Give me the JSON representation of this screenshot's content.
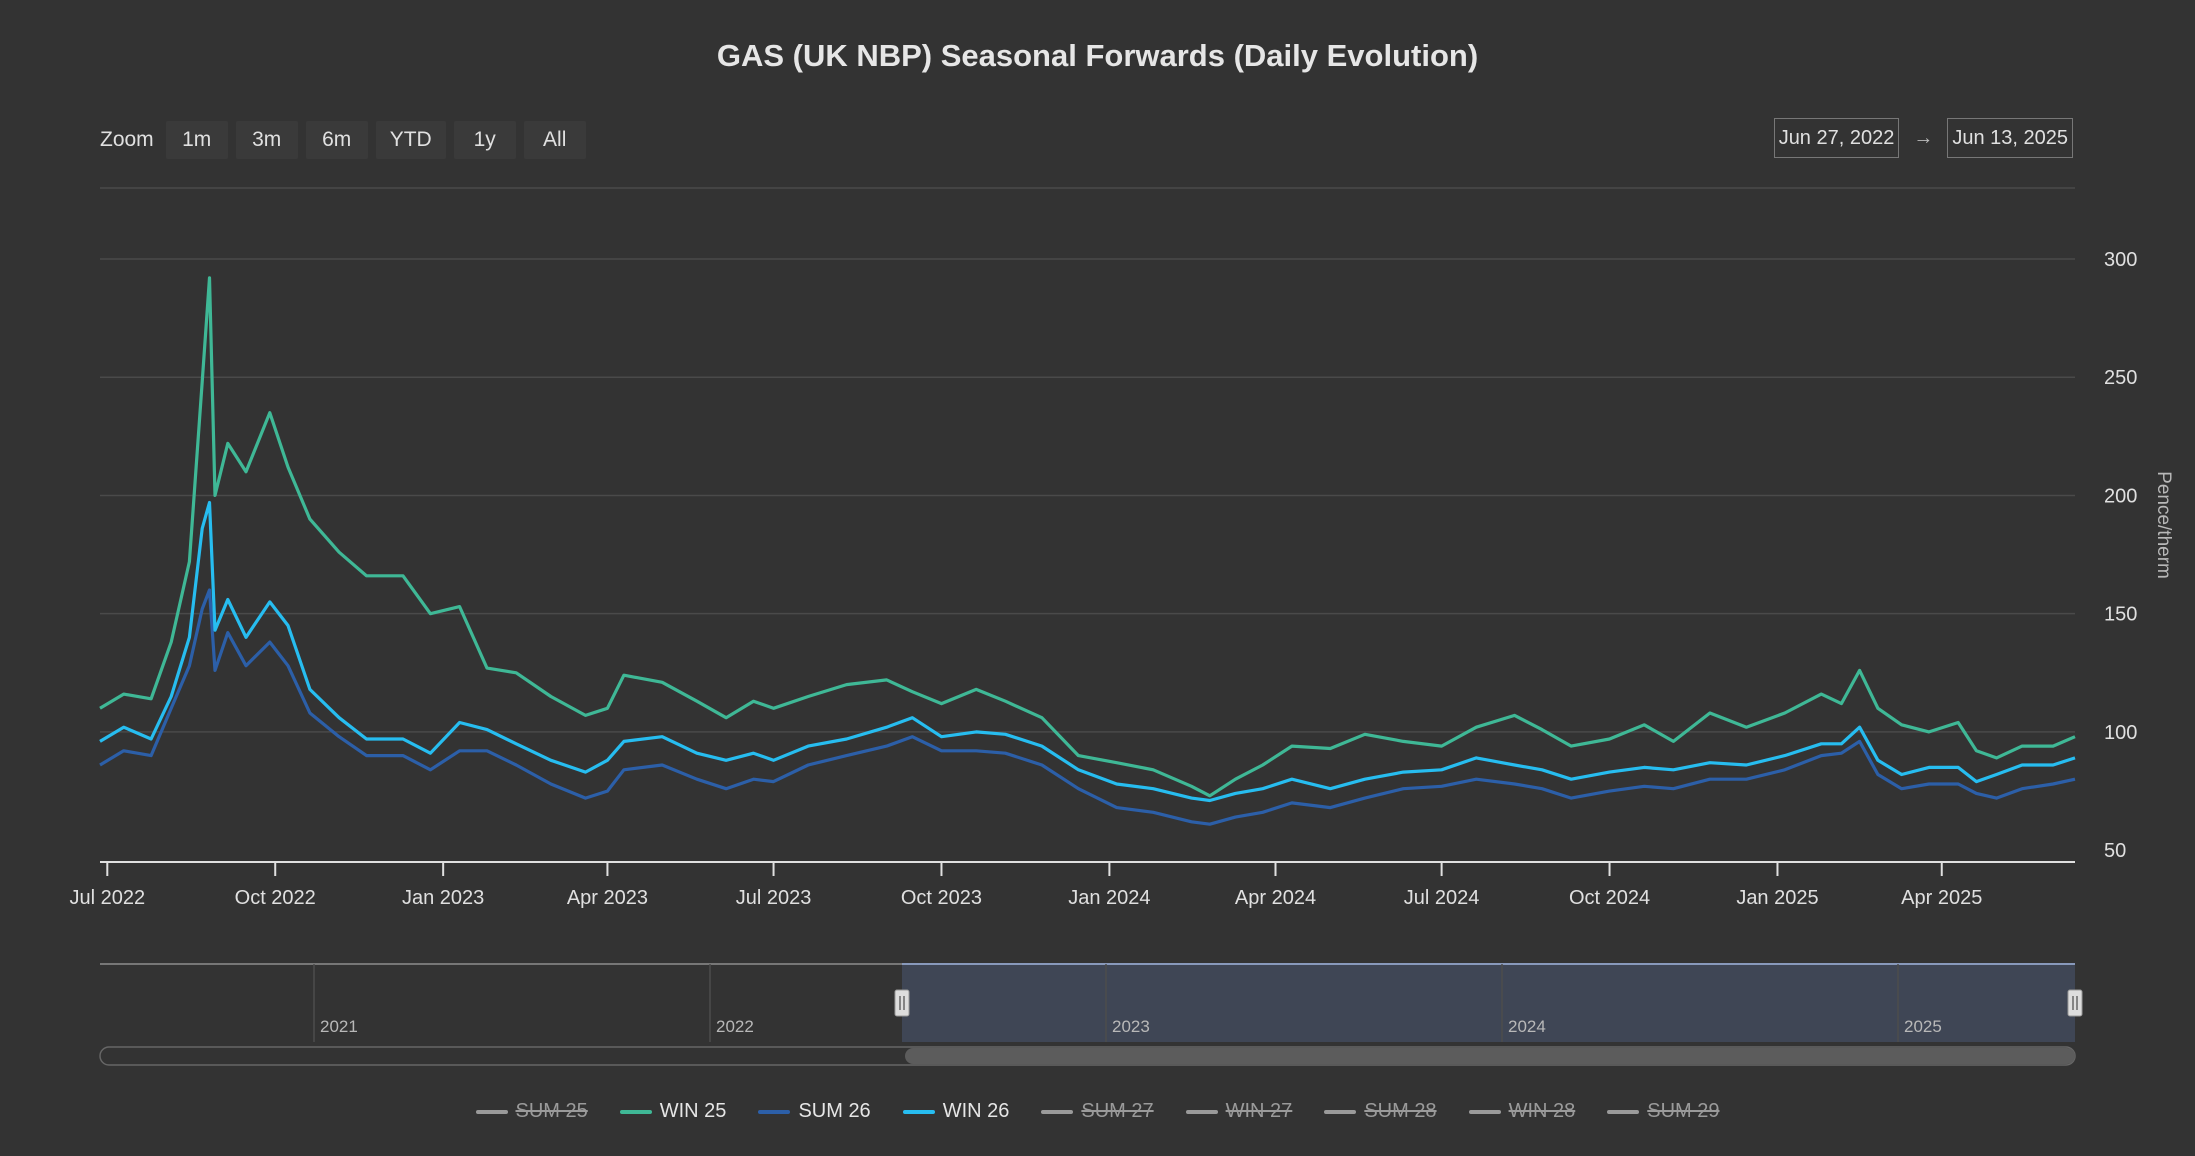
{
  "title": "GAS (UK NBP) Seasonal Forwards (Daily Evolution)",
  "zoom": {
    "label": "Zoom",
    "buttons": [
      "1m",
      "3m",
      "6m",
      "YTD",
      "1y",
      "All"
    ]
  },
  "range": {
    "from": "Jun 27, 2022",
    "arrow": "→",
    "to": "Jun 13, 2025"
  },
  "navigator": {
    "years": [
      "2021",
      "2022",
      "2023",
      "2024",
      "2025"
    ]
  },
  "colors": {
    "background": "#333333",
    "grid": "#4a4a4a",
    "win25": "#3fb896",
    "sum26": "#2c5fa8",
    "win26": "#27bdf0",
    "hidden": "#9a9a9a"
  },
  "chart_data": {
    "type": "line",
    "title": "GAS (UK NBP) Seasonal Forwards (Daily Evolution)",
    "ylabel": "Pence/therm",
    "ylim": [
      50,
      300
    ],
    "yticks": [
      50,
      100,
      150,
      200,
      250,
      300
    ],
    "xlim": [
      "2022-06-27",
      "2025-06-13"
    ],
    "xticks": [
      {
        "date": "2022-07-01",
        "label": "Jul 2022"
      },
      {
        "date": "2022-10-01",
        "label": "Oct 2022"
      },
      {
        "date": "2023-01-01",
        "label": "Jan 2023"
      },
      {
        "date": "2023-04-01",
        "label": "Apr 2023"
      },
      {
        "date": "2023-07-01",
        "label": "Jul 2023"
      },
      {
        "date": "2023-10-01",
        "label": "Oct 2023"
      },
      {
        "date": "2024-01-01",
        "label": "Jan 2024"
      },
      {
        "date": "2024-04-01",
        "label": "Apr 2024"
      },
      {
        "date": "2024-07-01",
        "label": "Jul 2024"
      },
      {
        "date": "2024-10-01",
        "label": "Oct 2024"
      },
      {
        "date": "2025-01-01",
        "label": "Jan 2025"
      },
      {
        "date": "2025-04-01",
        "label": "Apr 2025"
      }
    ],
    "legend_placement": "bottom",
    "grid": true,
    "series": [
      {
        "name": "SUM 25",
        "visible": false,
        "points": []
      },
      {
        "name": "WIN 25",
        "visible": true,
        "points": [
          [
            "2022-06-27",
            110
          ],
          [
            "2022-07-10",
            116
          ],
          [
            "2022-07-25",
            114
          ],
          [
            "2022-08-05",
            138
          ],
          [
            "2022-08-15",
            172
          ],
          [
            "2022-08-22",
            248
          ],
          [
            "2022-08-26",
            292
          ],
          [
            "2022-08-29",
            200
          ],
          [
            "2022-09-05",
            222
          ],
          [
            "2022-09-15",
            210
          ],
          [
            "2022-09-28",
            235
          ],
          [
            "2022-10-08",
            212
          ],
          [
            "2022-10-20",
            190
          ],
          [
            "2022-11-05",
            176
          ],
          [
            "2022-11-20",
            166
          ],
          [
            "2022-12-10",
            166
          ],
          [
            "2022-12-25",
            150
          ],
          [
            "2023-01-10",
            153
          ],
          [
            "2023-01-25",
            127
          ],
          [
            "2023-02-10",
            125
          ],
          [
            "2023-03-01",
            115
          ],
          [
            "2023-03-20",
            107
          ],
          [
            "2023-04-01",
            110
          ],
          [
            "2023-04-10",
            124
          ],
          [
            "2023-05-01",
            121
          ],
          [
            "2023-05-20",
            113
          ],
          [
            "2023-06-05",
            106
          ],
          [
            "2023-06-20",
            113
          ],
          [
            "2023-07-01",
            110
          ],
          [
            "2023-07-20",
            115
          ],
          [
            "2023-08-10",
            120
          ],
          [
            "2023-09-01",
            122
          ],
          [
            "2023-09-15",
            117
          ],
          [
            "2023-10-01",
            112
          ],
          [
            "2023-10-20",
            118
          ],
          [
            "2023-11-05",
            113
          ],
          [
            "2023-11-25",
            106
          ],
          [
            "2023-12-15",
            90
          ],
          [
            "2024-01-05",
            87
          ],
          [
            "2024-01-25",
            84
          ],
          [
            "2024-02-15",
            77
          ],
          [
            "2024-02-25",
            73
          ],
          [
            "2024-03-10",
            80
          ],
          [
            "2024-03-25",
            86
          ],
          [
            "2024-04-10",
            94
          ],
          [
            "2024-05-01",
            93
          ],
          [
            "2024-05-20",
            99
          ],
          [
            "2024-06-10",
            96
          ],
          [
            "2024-07-01",
            94
          ],
          [
            "2024-07-20",
            102
          ],
          [
            "2024-08-10",
            107
          ],
          [
            "2024-08-25",
            101
          ],
          [
            "2024-09-10",
            94
          ],
          [
            "2024-10-01",
            97
          ],
          [
            "2024-10-20",
            103
          ],
          [
            "2024-11-05",
            96
          ],
          [
            "2024-11-25",
            108
          ],
          [
            "2024-12-15",
            102
          ],
          [
            "2025-01-05",
            108
          ],
          [
            "2025-01-25",
            116
          ],
          [
            "2025-02-05",
            112
          ],
          [
            "2025-02-15",
            126
          ],
          [
            "2025-02-25",
            110
          ],
          [
            "2025-03-10",
            103
          ],
          [
            "2025-03-25",
            100
          ],
          [
            "2025-04-10",
            104
          ],
          [
            "2025-04-20",
            92
          ],
          [
            "2025-05-01",
            89
          ],
          [
            "2025-05-15",
            94
          ],
          [
            "2025-06-01",
            94
          ],
          [
            "2025-06-13",
            98
          ]
        ]
      },
      {
        "name": "SUM 26",
        "visible": true,
        "points": [
          [
            "2022-06-27",
            86
          ],
          [
            "2022-07-10",
            92
          ],
          [
            "2022-07-25",
            90
          ],
          [
            "2022-08-05",
            110
          ],
          [
            "2022-08-15",
            128
          ],
          [
            "2022-08-22",
            152
          ],
          [
            "2022-08-26",
            160
          ],
          [
            "2022-08-29",
            126
          ],
          [
            "2022-09-05",
            142
          ],
          [
            "2022-09-15",
            128
          ],
          [
            "2022-09-28",
            138
          ],
          [
            "2022-10-08",
            128
          ],
          [
            "2022-10-20",
            108
          ],
          [
            "2022-11-05",
            98
          ],
          [
            "2022-11-20",
            90
          ],
          [
            "2022-12-10",
            90
          ],
          [
            "2022-12-25",
            84
          ],
          [
            "2023-01-10",
            92
          ],
          [
            "2023-01-25",
            92
          ],
          [
            "2023-02-10",
            86
          ],
          [
            "2023-03-01",
            78
          ],
          [
            "2023-03-20",
            72
          ],
          [
            "2023-04-01",
            75
          ],
          [
            "2023-04-10",
            84
          ],
          [
            "2023-05-01",
            86
          ],
          [
            "2023-05-20",
            80
          ],
          [
            "2023-06-05",
            76
          ],
          [
            "2023-06-20",
            80
          ],
          [
            "2023-07-01",
            79
          ],
          [
            "2023-07-20",
            86
          ],
          [
            "2023-08-10",
            90
          ],
          [
            "2023-09-01",
            94
          ],
          [
            "2023-09-15",
            98
          ],
          [
            "2023-10-01",
            92
          ],
          [
            "2023-10-20",
            92
          ],
          [
            "2023-11-05",
            91
          ],
          [
            "2023-11-25",
            86
          ],
          [
            "2023-12-15",
            76
          ],
          [
            "2024-01-05",
            68
          ],
          [
            "2024-01-25",
            66
          ],
          [
            "2024-02-15",
            62
          ],
          [
            "2024-02-25",
            61
          ],
          [
            "2024-03-10",
            64
          ],
          [
            "2024-03-25",
            66
          ],
          [
            "2024-04-10",
            70
          ],
          [
            "2024-05-01",
            68
          ],
          [
            "2024-05-20",
            72
          ],
          [
            "2024-06-10",
            76
          ],
          [
            "2024-07-01",
            77
          ],
          [
            "2024-07-20",
            80
          ],
          [
            "2024-08-10",
            78
          ],
          [
            "2024-08-25",
            76
          ],
          [
            "2024-09-10",
            72
          ],
          [
            "2024-10-01",
            75
          ],
          [
            "2024-10-20",
            77
          ],
          [
            "2024-11-05",
            76
          ],
          [
            "2024-11-25",
            80
          ],
          [
            "2024-12-15",
            80
          ],
          [
            "2025-01-05",
            84
          ],
          [
            "2025-01-25",
            90
          ],
          [
            "2025-02-05",
            91
          ],
          [
            "2025-02-15",
            96
          ],
          [
            "2025-02-25",
            82
          ],
          [
            "2025-03-10",
            76
          ],
          [
            "2025-03-25",
            78
          ],
          [
            "2025-04-10",
            78
          ],
          [
            "2025-04-20",
            74
          ],
          [
            "2025-05-01",
            72
          ],
          [
            "2025-05-15",
            76
          ],
          [
            "2025-06-01",
            78
          ],
          [
            "2025-06-13",
            80
          ]
        ]
      },
      {
        "name": "WIN 26",
        "visible": true,
        "points": [
          [
            "2022-06-27",
            96
          ],
          [
            "2022-07-10",
            102
          ],
          [
            "2022-07-25",
            97
          ],
          [
            "2022-08-05",
            115
          ],
          [
            "2022-08-15",
            140
          ],
          [
            "2022-08-22",
            186
          ],
          [
            "2022-08-26",
            197
          ],
          [
            "2022-08-29",
            143
          ],
          [
            "2022-09-05",
            156
          ],
          [
            "2022-09-15",
            140
          ],
          [
            "2022-09-28",
            155
          ],
          [
            "2022-10-08",
            145
          ],
          [
            "2022-10-20",
            118
          ],
          [
            "2022-11-05",
            106
          ],
          [
            "2022-11-20",
            97
          ],
          [
            "2022-12-10",
            97
          ],
          [
            "2022-12-25",
            91
          ],
          [
            "2023-01-10",
            104
          ],
          [
            "2023-01-25",
            101
          ],
          [
            "2023-02-10",
            95
          ],
          [
            "2023-03-01",
            88
          ],
          [
            "2023-03-20",
            83
          ],
          [
            "2023-04-01",
            88
          ],
          [
            "2023-04-10",
            96
          ],
          [
            "2023-05-01",
            98
          ],
          [
            "2023-05-20",
            91
          ],
          [
            "2023-06-05",
            88
          ],
          [
            "2023-06-20",
            91
          ],
          [
            "2023-07-01",
            88
          ],
          [
            "2023-07-20",
            94
          ],
          [
            "2023-08-10",
            97
          ],
          [
            "2023-09-01",
            102
          ],
          [
            "2023-09-15",
            106
          ],
          [
            "2023-10-01",
            98
          ],
          [
            "2023-10-20",
            100
          ],
          [
            "2023-11-05",
            99
          ],
          [
            "2023-11-25",
            94
          ],
          [
            "2023-12-15",
            84
          ],
          [
            "2024-01-05",
            78
          ],
          [
            "2024-01-25",
            76
          ],
          [
            "2024-02-15",
            72
          ],
          [
            "2024-02-25",
            71
          ],
          [
            "2024-03-10",
            74
          ],
          [
            "2024-03-25",
            76
          ],
          [
            "2024-04-10",
            80
          ],
          [
            "2024-05-01",
            76
          ],
          [
            "2024-05-20",
            80
          ],
          [
            "2024-06-10",
            83
          ],
          [
            "2024-07-01",
            84
          ],
          [
            "2024-07-20",
            89
          ],
          [
            "2024-08-10",
            86
          ],
          [
            "2024-08-25",
            84
          ],
          [
            "2024-09-10",
            80
          ],
          [
            "2024-10-01",
            83
          ],
          [
            "2024-10-20",
            85
          ],
          [
            "2024-11-05",
            84
          ],
          [
            "2024-11-25",
            87
          ],
          [
            "2024-12-15",
            86
          ],
          [
            "2025-01-05",
            90
          ],
          [
            "2025-01-25",
            95
          ],
          [
            "2025-02-05",
            95
          ],
          [
            "2025-02-15",
            102
          ],
          [
            "2025-02-25",
            88
          ],
          [
            "2025-03-10",
            82
          ],
          [
            "2025-03-25",
            85
          ],
          [
            "2025-04-10",
            85
          ],
          [
            "2025-04-20",
            79
          ],
          [
            "2025-05-01",
            82
          ],
          [
            "2025-05-15",
            86
          ],
          [
            "2025-06-01",
            86
          ],
          [
            "2025-06-13",
            89
          ]
        ]
      },
      {
        "name": "SUM 27",
        "visible": false,
        "points": []
      },
      {
        "name": "WIN 27",
        "visible": false,
        "points": []
      },
      {
        "name": "SUM 28",
        "visible": false,
        "points": []
      },
      {
        "name": "WIN 28",
        "visible": false,
        "points": []
      },
      {
        "name": "SUM 29",
        "visible": false,
        "points": []
      }
    ]
  }
}
